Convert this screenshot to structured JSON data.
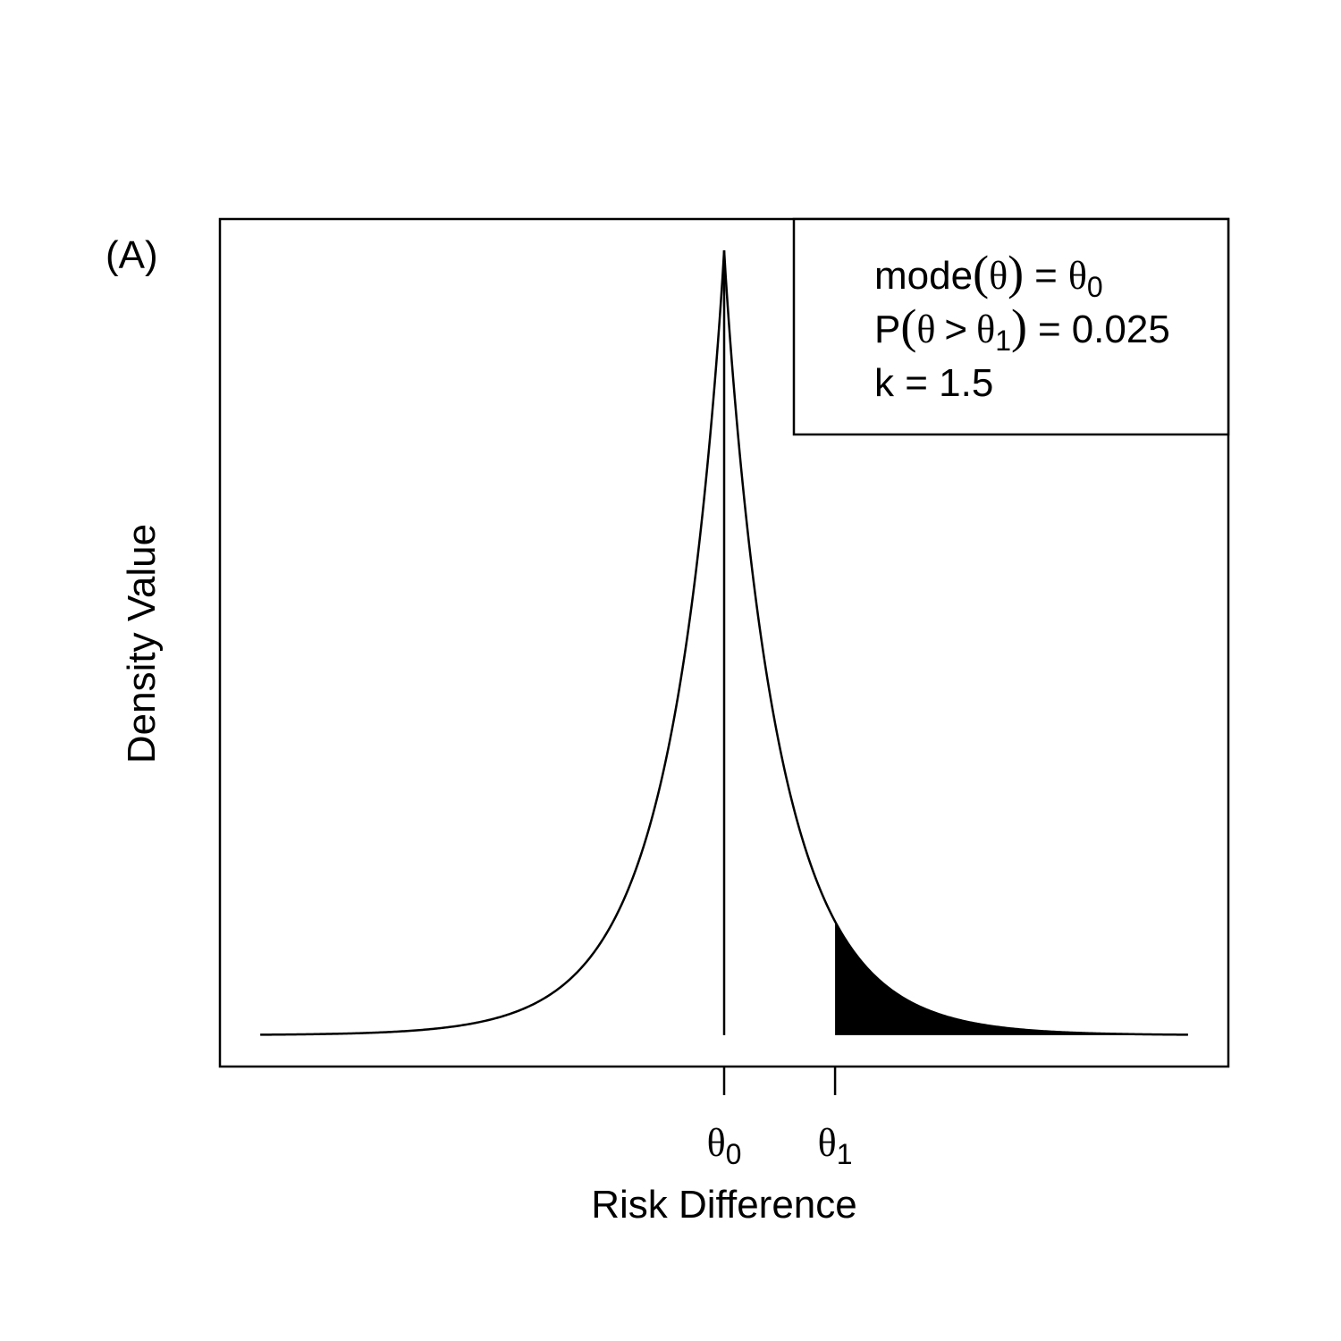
{
  "panel_label": "(A)",
  "chart_data": {
    "type": "line",
    "title": "",
    "xlabel": "Risk Difference",
    "ylabel": "Density Value",
    "x_ticks": [
      {
        "base": "θ",
        "sub": "0"
      },
      {
        "base": "θ",
        "sub": "1"
      }
    ],
    "distribution": {
      "mode_x": 0,
      "theta1_x": 0.22,
      "k": 1.5,
      "tail_probability": 0.025,
      "x_range": [
        -0.92,
        0.92
      ],
      "peak_density": 1,
      "shaded_region": "x > theta1"
    },
    "legend": {
      "placement": "top-right",
      "lines": [
        {
          "name": "mode",
          "arg": "θ",
          "rhs_base": "θ",
          "rhs_sub": "0"
        },
        {
          "name": "P",
          "arg_base": "θ",
          "op": ">",
          "arg_cmp_base": "θ",
          "arg_cmp_sub": "1",
          "rhs": "0.025"
        },
        {
          "text": "k = 1.5"
        }
      ]
    },
    "grid": false,
    "colors": {
      "line": "#000000",
      "fill": "#000000",
      "background": "#ffffff"
    }
  }
}
